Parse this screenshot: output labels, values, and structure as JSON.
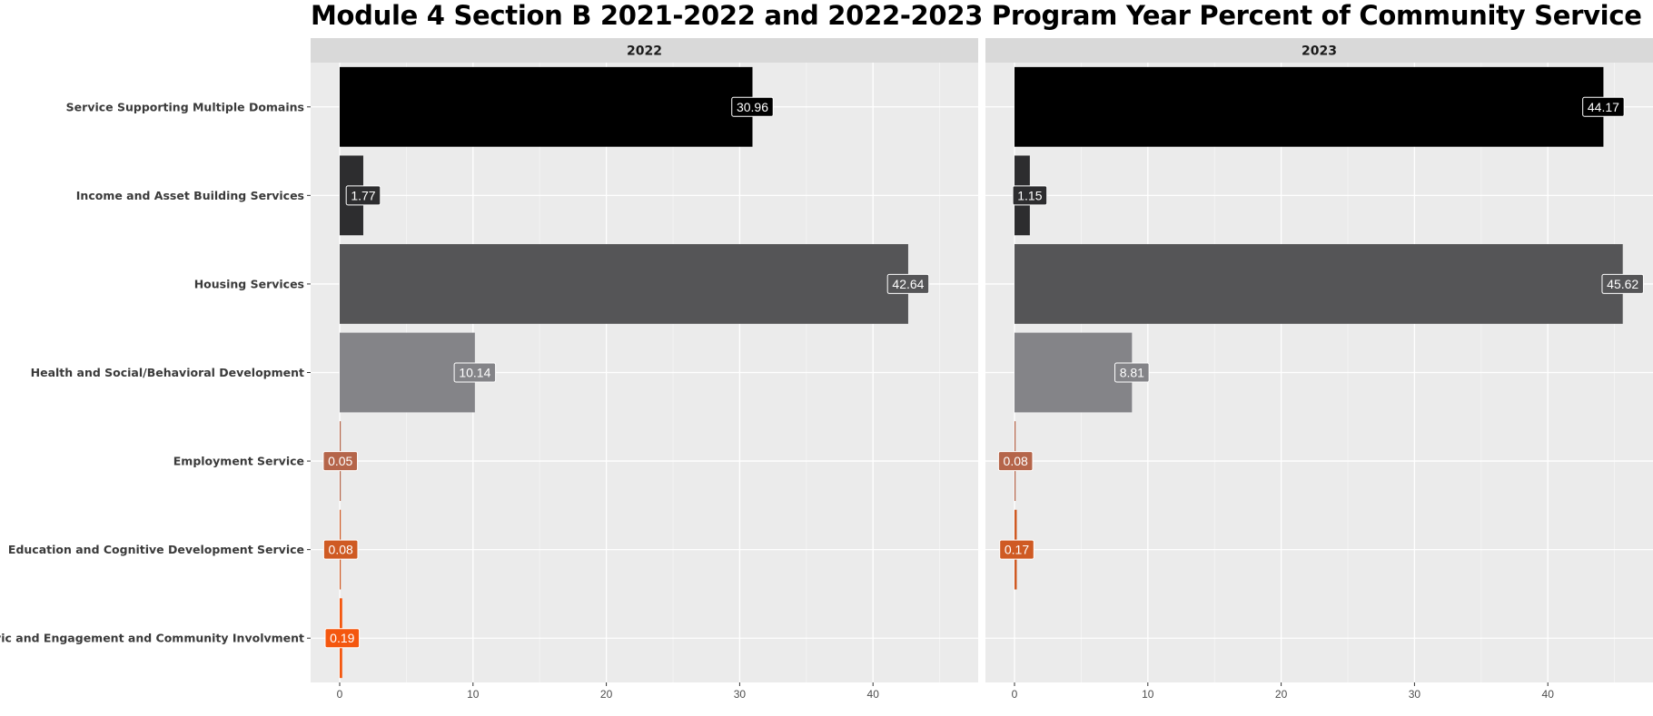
{
  "chart_data": {
    "type": "bar",
    "orientation": "horizontal",
    "title": "Module 4 Section B 2021-2022 and 2022-2023 Program Year Percent of Community Service",
    "xlim": [
      0,
      48
    ],
    "x_ticks": [
      "0",
      "10",
      "20",
      "30",
      "40"
    ],
    "categories": [
      "Service Supporting Multiple Domains",
      "Income and Asset Building Services",
      "Housing Services",
      "Health and Social/Behavioral Development",
      "Employment Service",
      "Education and Cognitive Development Service",
      "Civic and Engagement and Community Involvment"
    ],
    "category_colors": [
      "#000000",
      "#2d2d2f",
      "#555557",
      "#848488",
      "#b5654a",
      "#cf5a23",
      "#f4570f"
    ],
    "panels": [
      {
        "facet": "2022",
        "values": [
          30.96,
          1.77,
          42.64,
          10.14,
          0.05,
          0.08,
          0.19
        ],
        "labels": [
          "30.96",
          "1.77",
          "42.64",
          "10.14",
          "0.05",
          "0.08",
          "0.19"
        ]
      },
      {
        "facet": "2023",
        "values": [
          44.17,
          1.15,
          45.62,
          8.81,
          0.08,
          0.17,
          null
        ],
        "labels": [
          "44.17",
          "1.15",
          "45.62",
          "8.81",
          "0.08",
          "0.17",
          ""
        ]
      }
    ],
    "grid": true,
    "legend": "none"
  }
}
